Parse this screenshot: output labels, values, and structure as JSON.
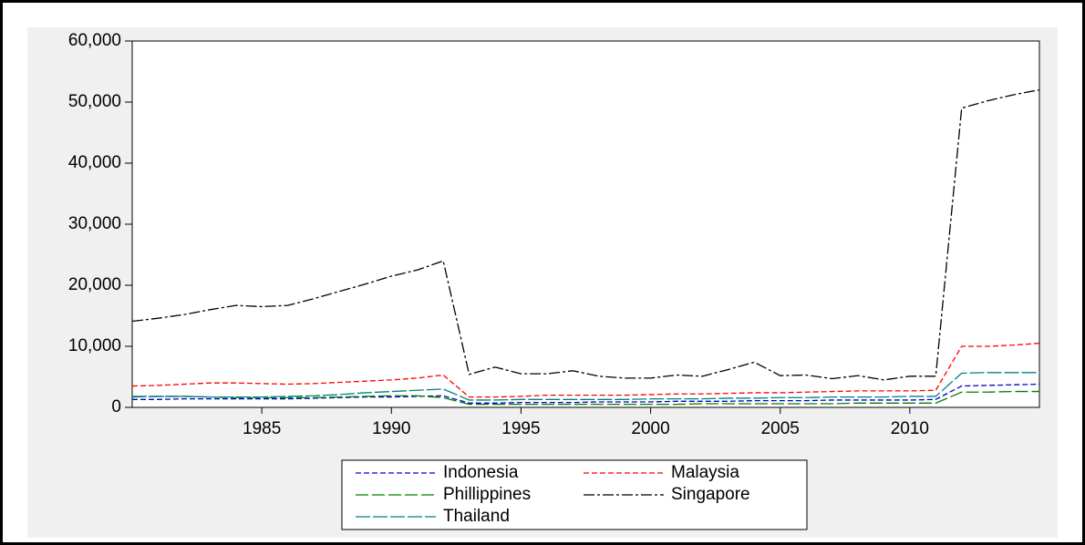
{
  "chart_data": {
    "type": "line",
    "x": [
      1980,
      1981,
      1982,
      1983,
      1984,
      1985,
      1986,
      1987,
      1988,
      1989,
      1990,
      1991,
      1992,
      1993,
      1994,
      1995,
      1996,
      1997,
      1998,
      1999,
      2000,
      2001,
      2002,
      2003,
      2004,
      2005,
      2006,
      2007,
      2008,
      2009,
      2010,
      2011,
      2012,
      2013,
      2014,
      2015
    ],
    "series": [
      {
        "name": "Indonesia",
        "color": "#0000cc",
        "dash": "6 3",
        "values": [
          1300,
          1300,
          1400,
          1400,
          1400,
          1400,
          1400,
          1500,
          1600,
          1700,
          1700,
          1800,
          1900,
          700,
          700,
          800,
          800,
          800,
          900,
          900,
          900,
          1000,
          1000,
          1000,
          1100,
          1100,
          1100,
          1200,
          1200,
          1200,
          1200,
          1300,
          3500,
          3600,
          3700,
          3800
        ]
      },
      {
        "name": "Malaysia",
        "color": "#ff0000",
        "dash": "6 3",
        "values": [
          3500,
          3600,
          3800,
          4000,
          4000,
          3900,
          3800,
          3900,
          4100,
          4300,
          4500,
          4800,
          5300,
          1700,
          1700,
          1800,
          2000,
          2000,
          2000,
          2000,
          2100,
          2200,
          2200,
          2300,
          2400,
          2400,
          2500,
          2600,
          2700,
          2700,
          2700,
          2800,
          10000,
          10000,
          10200,
          10500
        ]
      },
      {
        "name": "Phillippines",
        "color": "#008000",
        "dash": "14 4",
        "values": [
          1700,
          1800,
          1800,
          1700,
          1600,
          1600,
          1600,
          1600,
          1700,
          1800,
          1900,
          1900,
          1600,
          500,
          500,
          500,
          500,
          500,
          500,
          500,
          500,
          500,
          600,
          600,
          600,
          600,
          600,
          600,
          700,
          700,
          700,
          700,
          2500,
          2500,
          2600,
          2600
        ]
      },
      {
        "name": "Singapore",
        "color": "#000000",
        "dash": "12 3 3 3",
        "values": [
          14100,
          14600,
          15200,
          16000,
          16700,
          16500,
          16700,
          17800,
          19000,
          20200,
          21500,
          22500,
          24000,
          5400,
          6600,
          5500,
          5500,
          6000,
          5100,
          4800,
          4800,
          5300,
          5100,
          6200,
          7400,
          5200,
          5300,
          4700,
          5200,
          4500,
          5100,
          5100,
          49000,
          50200,
          51200,
          52000
        ]
      },
      {
        "name": "Thailand",
        "color": "#008080",
        "dash": "16 3",
        "values": [
          1800,
          1800,
          1800,
          1700,
          1700,
          1700,
          1800,
          1900,
          2100,
          2400,
          2600,
          2800,
          3000,
          1200,
          1200,
          1300,
          1300,
          1300,
          1300,
          1300,
          1400,
          1400,
          1400,
          1500,
          1500,
          1600,
          1600,
          1700,
          1700,
          1700,
          1800,
          1800,
          5600,
          5700,
          5700,
          5700
        ]
      }
    ],
    "xlim": [
      1980,
      2015
    ],
    "xticks": [
      1985,
      1990,
      1995,
      2000,
      2005,
      2010
    ],
    "ylim": [
      0,
      60000
    ],
    "yticks": [
      0,
      {
        "value": 10000,
        "label": "10,000"
      },
      {
        "value": 20000,
        "label": "20,000"
      },
      {
        "value": 30000,
        "label": "30,000"
      },
      {
        "value": 40000,
        "label": "40,000"
      },
      {
        "value": 50000,
        "label": "50,000"
      },
      {
        "value": 60000,
        "label": "60,000"
      }
    ],
    "grid": false,
    "legend": "bottom"
  }
}
